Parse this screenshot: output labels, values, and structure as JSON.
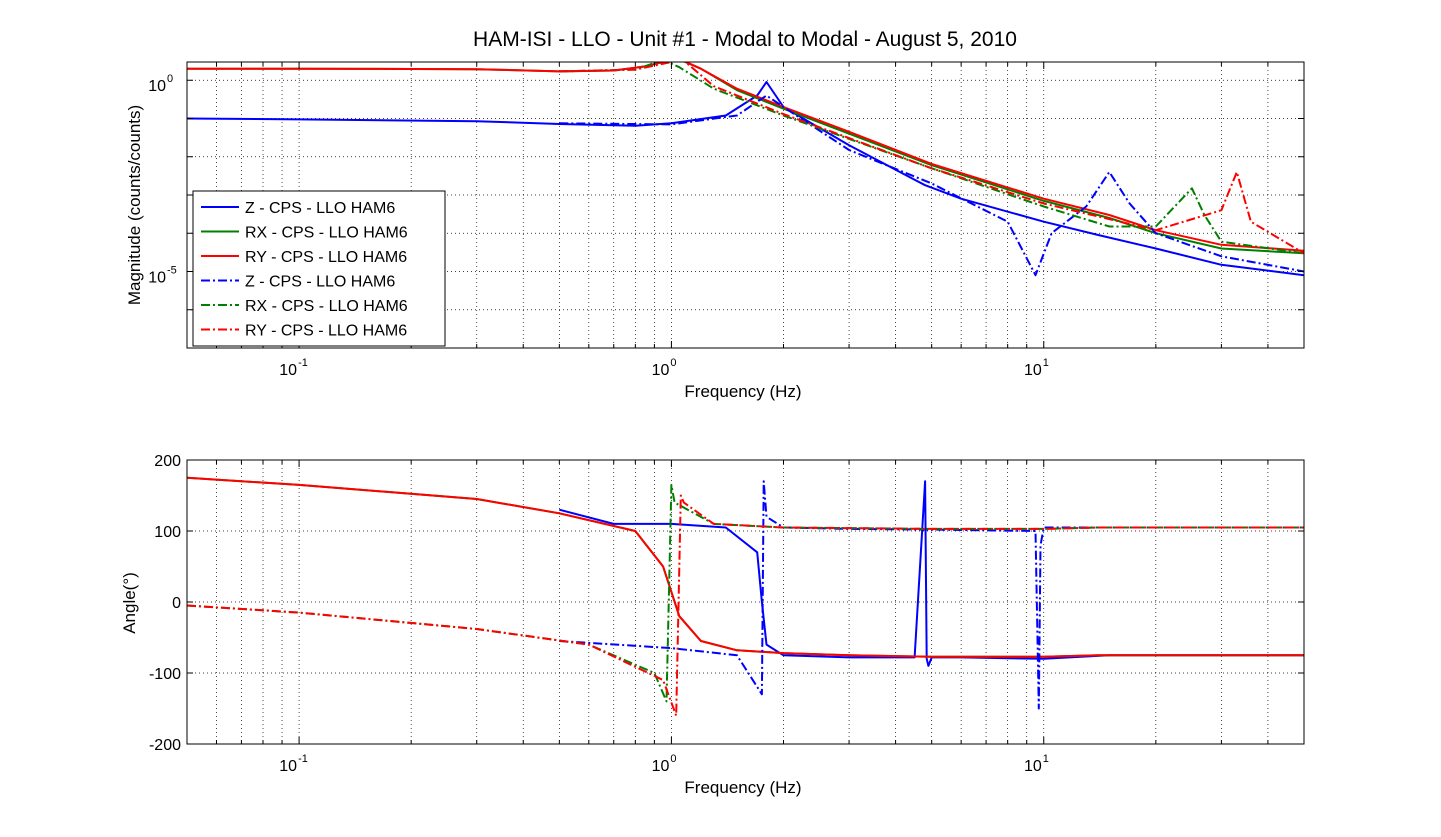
{
  "figure": {
    "title": "HAM-ISI - LLO - Unit #1 - Modal to Modal - August 5, 2010"
  },
  "colors": {
    "Z": "#0000ff",
    "RX": "#008000",
    "RY": "#ff0000"
  },
  "chart_data": [
    {
      "type": "line",
      "name": "magnitude",
      "title": "HAM-ISI - LLO - Unit #1 - Modal to Modal - August 5, 2010",
      "xlabel": "Frequency (Hz)",
      "ylabel": "Magnitude (counts/counts)",
      "xscale": "log",
      "yscale": "log",
      "xlim": [
        0.05,
        50
      ],
      "ylim": [
        1e-07,
        3
      ],
      "grid": true,
      "legend_position": "lower-left",
      "xticks": [
        {
          "base": "10",
          "exp": "-1",
          "value": 0.1
        },
        {
          "base": "10",
          "exp": "0",
          "value": 1
        },
        {
          "base": "10",
          "exp": "1",
          "value": 10
        }
      ],
      "yticks": [
        {
          "base": "10",
          "exp": "0",
          "value": 1
        },
        {
          "base": "10",
          "exp": "-5",
          "value": 1e-05
        }
      ],
      "series": [
        {
          "name": "Z - CPS - LLO HAM6",
          "color": "#0000ff",
          "style": "solid",
          "x": [
            0.05,
            0.1,
            0.3,
            0.5,
            0.8,
            1.0,
            1.4,
            1.7,
            1.8,
            2.0,
            3.0,
            4.5,
            4.8,
            6.0,
            10.0,
            14.0,
            20.0,
            30.0,
            50.0
          ],
          "y": [
            0.1,
            0.095,
            0.085,
            0.072,
            0.065,
            0.075,
            0.12,
            0.4,
            0.9,
            0.2,
            0.02,
            0.0025,
            0.0018,
            0.0008,
            0.0002,
            9e-05,
            4e-05,
            1.5e-05,
            8e-06
          ]
        },
        {
          "name": "RX - CPS - LLO HAM6",
          "color": "#008000",
          "style": "solid",
          "x": [
            0.05,
            0.1,
            0.3,
            0.5,
            0.7,
            0.85,
            1.0,
            1.05,
            1.2,
            1.5,
            2.0,
            3.0,
            5.0,
            10.0,
            15.0,
            20.0,
            30.0,
            50.0
          ],
          "y": [
            2.0,
            2.0,
            1.95,
            1.7,
            1.8,
            2.3,
            3.4,
            3.5,
            2.0,
            0.55,
            0.18,
            0.04,
            0.006,
            0.0007,
            0.00025,
            0.0001,
            4e-05,
            3e-05
          ]
        },
        {
          "name": "RY - CPS - LLO HAM6",
          "color": "#ff0000",
          "style": "solid",
          "x": [
            0.05,
            0.1,
            0.3,
            0.5,
            0.7,
            0.85,
            1.0,
            1.05,
            1.2,
            1.5,
            2.0,
            3.0,
            5.0,
            10.0,
            15.0,
            20.0,
            30.0,
            50.0
          ],
          "y": [
            2.0,
            2.0,
            1.95,
            1.7,
            1.8,
            2.3,
            3.4,
            3.6,
            2.0,
            0.6,
            0.2,
            0.045,
            0.0065,
            0.0008,
            0.0003,
            0.00012,
            5e-05,
            3.5e-05
          ]
        },
        {
          "name": "Z - CPS - LLO HAM6",
          "color": "#0000ff",
          "style": "dashdot",
          "x": [
            0.5,
            1.0,
            1.5,
            1.8,
            2.0,
            3.0,
            5.0,
            8.0,
            9.5,
            10.5,
            13.0,
            15.0,
            17.0,
            20.0,
            30.0,
            50.0
          ],
          "y": [
            0.075,
            0.07,
            0.12,
            0.4,
            0.2,
            0.015,
            0.002,
            0.0002,
            8e-06,
            0.0001,
            0.0005,
            0.004,
            0.0006,
            0.0001,
            2.5e-05,
            1e-05
          ]
        },
        {
          "name": "RX - CPS - LLO HAM6",
          "color": "#008000",
          "style": "dashdot",
          "x": [
            0.5,
            0.8,
            0.95,
            1.05,
            1.3,
            2.0,
            5.0,
            10.0,
            15.0,
            20.0,
            25.0,
            27.0,
            30.0,
            50.0
          ],
          "y": [
            1.7,
            1.9,
            3.4,
            2.2,
            0.6,
            0.12,
            0.005,
            0.0005,
            0.00015,
            0.00015,
            0.0015,
            0.0003,
            6e-05,
            3e-05
          ]
        },
        {
          "name": "RY - CPS - LLO HAM6",
          "color": "#ff0000",
          "style": "dashdot",
          "x": [
            0.5,
            0.8,
            1.0,
            1.07,
            1.3,
            2.0,
            5.0,
            10.0,
            20.0,
            30.0,
            33.0,
            36.0,
            50.0
          ],
          "y": [
            1.7,
            1.9,
            3.0,
            3.5,
            0.7,
            0.13,
            0.005,
            0.0006,
            0.00012,
            0.0004,
            0.004,
            0.0002,
            3e-05
          ]
        }
      ]
    },
    {
      "type": "line",
      "name": "phase",
      "xlabel": "Frequency (Hz)",
      "ylabel": "Angle(°)",
      "xscale": "log",
      "yscale": "linear",
      "xlim": [
        0.05,
        50
      ],
      "ylim": [
        -200,
        200
      ],
      "grid": true,
      "xticks": [
        {
          "base": "10",
          "exp": "-1",
          "value": 0.1
        },
        {
          "base": "10",
          "exp": "0",
          "value": 1
        },
        {
          "base": "10",
          "exp": "1",
          "value": 10
        }
      ],
      "yticks": [
        {
          "label": "200",
          "value": 200
        },
        {
          "label": "100",
          "value": 100
        },
        {
          "label": "0",
          "value": 0
        },
        {
          "label": "-100",
          "value": -100
        },
        {
          "label": "-200",
          "value": -200
        }
      ],
      "series": [
        {
          "name": "Z - CPS - LLO HAM6",
          "color": "#0000ff",
          "style": "solid",
          "x": [
            0.5,
            0.7,
            1.0,
            1.4,
            1.7,
            1.75,
            1.8,
            2.0,
            3.0,
            4.5,
            4.8,
            4.85,
            4.9,
            5.0,
            6.0,
            10.0,
            15.0,
            50.0
          ],
          "y": [
            130,
            110,
            110,
            105,
            70,
            0,
            -60,
            -75,
            -78,
            -78,
            170,
            -80,
            -90,
            -78,
            -78,
            -80,
            -75,
            -75
          ]
        },
        {
          "name": "RX - CPS - LLO HAM6",
          "color": "#008000",
          "style": "solid",
          "x": [
            0.05,
            0.1,
            0.3,
            0.5,
            0.8,
            0.95,
            1.05,
            1.2,
            1.5,
            2.0,
            3.0,
            5.0,
            10.0,
            14.0,
            50.0
          ],
          "y": [
            175,
            165,
            145,
            125,
            100,
            50,
            -20,
            -55,
            -68,
            -72,
            -75,
            -77,
            -77,
            -75,
            -75
          ]
        },
        {
          "name": "RY - CPS - LLO HAM6",
          "color": "#ff0000",
          "style": "solid",
          "x": [
            0.05,
            0.1,
            0.3,
            0.5,
            0.8,
            0.95,
            1.05,
            1.2,
            1.5,
            2.0,
            3.0,
            5.0,
            10.0,
            14.0,
            50.0
          ],
          "y": [
            175,
            165,
            145,
            125,
            100,
            50,
            -20,
            -55,
            -68,
            -72,
            -75,
            -77,
            -77,
            -75,
            -75
          ]
        },
        {
          "name": "Z - CPS - LLO HAM6",
          "color": "#0000ff",
          "style": "dashdot",
          "x": [
            0.5,
            1.0,
            1.5,
            1.75,
            1.77,
            1.8,
            2.0,
            3.0,
            5.0,
            9.5,
            9.7,
            9.8,
            10.0,
            15.0,
            50.0
          ],
          "y": [
            -55,
            -65,
            -75,
            -130,
            170,
            120,
            105,
            103,
            102,
            100,
            -150,
            80,
            105,
            105,
            105
          ]
        },
        {
          "name": "RX - CPS - LLO HAM6",
          "color": "#008000",
          "style": "dashdot",
          "x": [
            0.05,
            0.1,
            0.3,
            0.6,
            0.9,
            0.97,
            1.0,
            1.02,
            1.3,
            2.0,
            5.0,
            10.0,
            14.0,
            50.0
          ],
          "y": [
            -5,
            -15,
            -38,
            -60,
            -100,
            -140,
            165,
            140,
            110,
            105,
            103,
            103,
            105,
            105
          ]
        },
        {
          "name": "RY - CPS - LLO HAM6",
          "color": "#ff0000",
          "style": "dashdot",
          "x": [
            0.05,
            0.1,
            0.3,
            0.6,
            0.95,
            1.03,
            1.06,
            1.08,
            1.3,
            2.0,
            5.0,
            10.0,
            14.0,
            50.0
          ],
          "y": [
            -5,
            -15,
            -38,
            -60,
            -110,
            -160,
            150,
            140,
            110,
            105,
            103,
            103,
            105,
            105
          ]
        }
      ]
    }
  ]
}
